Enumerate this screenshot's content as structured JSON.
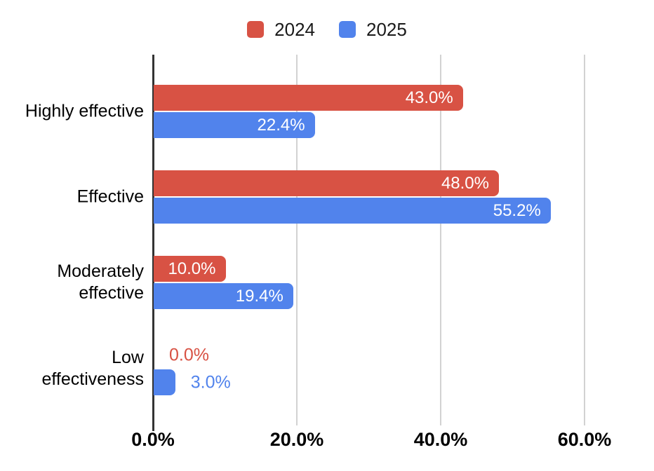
{
  "chart_data": {
    "type": "bar",
    "orientation": "horizontal",
    "title": "",
    "categories": [
      "Highly effective",
      "Effective",
      "Moderately effective",
      "Low effectiveness"
    ],
    "category_label_lines": [
      [
        "Highly effective"
      ],
      [
        "Effective"
      ],
      [
        "Moderately",
        "effective"
      ],
      [
        "Low",
        "effectiveness"
      ]
    ],
    "series": [
      {
        "name": "2024",
        "color": "#d85244",
        "values": [
          43.0,
          48.0,
          10.0,
          0.0
        ],
        "labels": [
          "43.0%",
          "48.0%",
          "10.0%",
          "0.0%"
        ]
      },
      {
        "name": "2025",
        "color": "#5183ec",
        "values": [
          22.4,
          55.2,
          19.4,
          3.0
        ],
        "labels": [
          "22.4%",
          "55.2%",
          "19.4%",
          "3.0%"
        ]
      }
    ],
    "x_axis": {
      "ticks": [
        {
          "value": 0,
          "label": "0.0%"
        },
        {
          "value": 20,
          "label": "20.0%"
        },
        {
          "value": 40,
          "label": "40.0%"
        },
        {
          "value": 60,
          "label": "60.0%"
        }
      ],
      "range": [
        0,
        69
      ]
    },
    "grid": true,
    "legend_position": "top",
    "value_label_color_inside": "#ffffff",
    "grid_color": "#d2d2d2",
    "axis_color": "#333333",
    "text_color": "#000000"
  }
}
